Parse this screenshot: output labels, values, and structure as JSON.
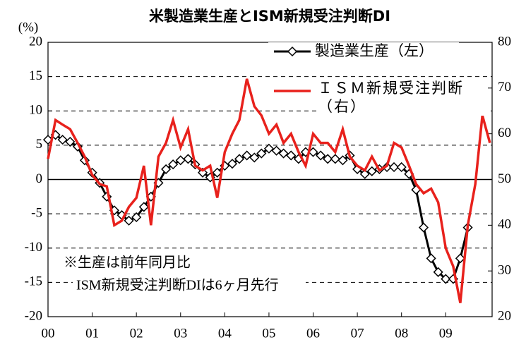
{
  "chart_data": {
    "type": "line",
    "title": "米製造業生産とISM新規受注判断DI",
    "y_label": "(%)",
    "annotations": [
      "※生産は前年同月比",
      "ISM新規受注判断DIは6ヶ月先行"
    ],
    "x": [
      0,
      0.17,
      0.33,
      0.5,
      0.67,
      0.83,
      1,
      1.17,
      1.33,
      1.5,
      1.67,
      1.83,
      2,
      2.17,
      2.33,
      2.5,
      2.67,
      2.83,
      3,
      3.17,
      3.33,
      3.5,
      3.67,
      3.83,
      4,
      4.17,
      4.33,
      4.5,
      4.67,
      4.83,
      5,
      5.17,
      5.33,
      5.5,
      5.67,
      5.83,
      6,
      6.17,
      6.33,
      6.5,
      6.67,
      6.83,
      7,
      7.17,
      7.33,
      7.5,
      7.67,
      7.83,
      8,
      8.17,
      8.33,
      8.5,
      8.67,
      8.83,
      9,
      9.17,
      9.33,
      9.5,
      9.67,
      9.83,
      10
    ],
    "xlim": [
      0,
      10.05
    ],
    "xticks": [
      {
        "value": 0,
        "label": "00"
      },
      {
        "value": 1,
        "label": "01"
      },
      {
        "value": 2,
        "label": "02"
      },
      {
        "value": 3,
        "label": "03"
      },
      {
        "value": 4,
        "label": "04"
      },
      {
        "value": 5,
        "label": "05"
      },
      {
        "value": 6,
        "label": "06"
      },
      {
        "value": 7,
        "label": "07"
      },
      {
        "value": 8,
        "label": "08"
      },
      {
        "value": 9,
        "label": "09"
      }
    ],
    "ylim": [
      -20,
      20
    ],
    "yticks": [
      -20,
      -15,
      -10,
      -5,
      0,
      5,
      10,
      15,
      20
    ],
    "y2lim": [
      20,
      80
    ],
    "y2ticks": [
      20,
      30,
      40,
      50,
      60,
      70,
      80
    ],
    "grid": true,
    "series": [
      {
        "name": "製造業生産（左）",
        "color": "#000000",
        "marker": "diamond",
        "values": [
          5.8,
          6.5,
          5.8,
          5.5,
          4.8,
          2.8,
          1.0,
          -0.5,
          -2.5,
          -4.5,
          -5.2,
          -6.0,
          -5.5,
          -4.0,
          -2.5,
          -0.5,
          1.5,
          2.2,
          2.8,
          3.0,
          2.2,
          1.0,
          0.3,
          1.0,
          2.0,
          2.3,
          3.0,
          3.5,
          3.2,
          3.8,
          4.5,
          4.2,
          3.8,
          3.5,
          3.0,
          4.0,
          4.0,
          3.5,
          3.0,
          3.0,
          2.8,
          3.5,
          1.5,
          0.8,
          1.2,
          1.5,
          1.8,
          1.8,
          1.8,
          0.8,
          -1.5,
          -7.0,
          -11.5,
          -13.5,
          -14.5,
          -14.5,
          -11.5,
          -7.0,
          null,
          null,
          null
        ]
      },
      {
        "name": "ＩＳＭ新規受注判断（右）",
        "color": "#e8211c",
        "axis": "y2",
        "values": [
          54.5,
          63,
          62,
          61,
          58,
          55,
          51,
          49,
          48.5,
          40,
          41,
          44,
          46,
          53,
          40,
          55,
          58,
          63,
          57,
          61,
          53,
          52,
          53,
          46,
          56,
          60,
          63,
          72,
          66,
          64,
          60,
          62,
          58,
          60,
          56,
          53,
          60,
          58,
          58,
          56,
          61,
          55,
          53,
          52,
          55,
          52,
          53,
          58,
          57,
          53,
          49,
          47,
          48,
          45,
          35,
          31,
          23,
          40,
          49,
          64,
          58
        ]
      }
    ]
  }
}
